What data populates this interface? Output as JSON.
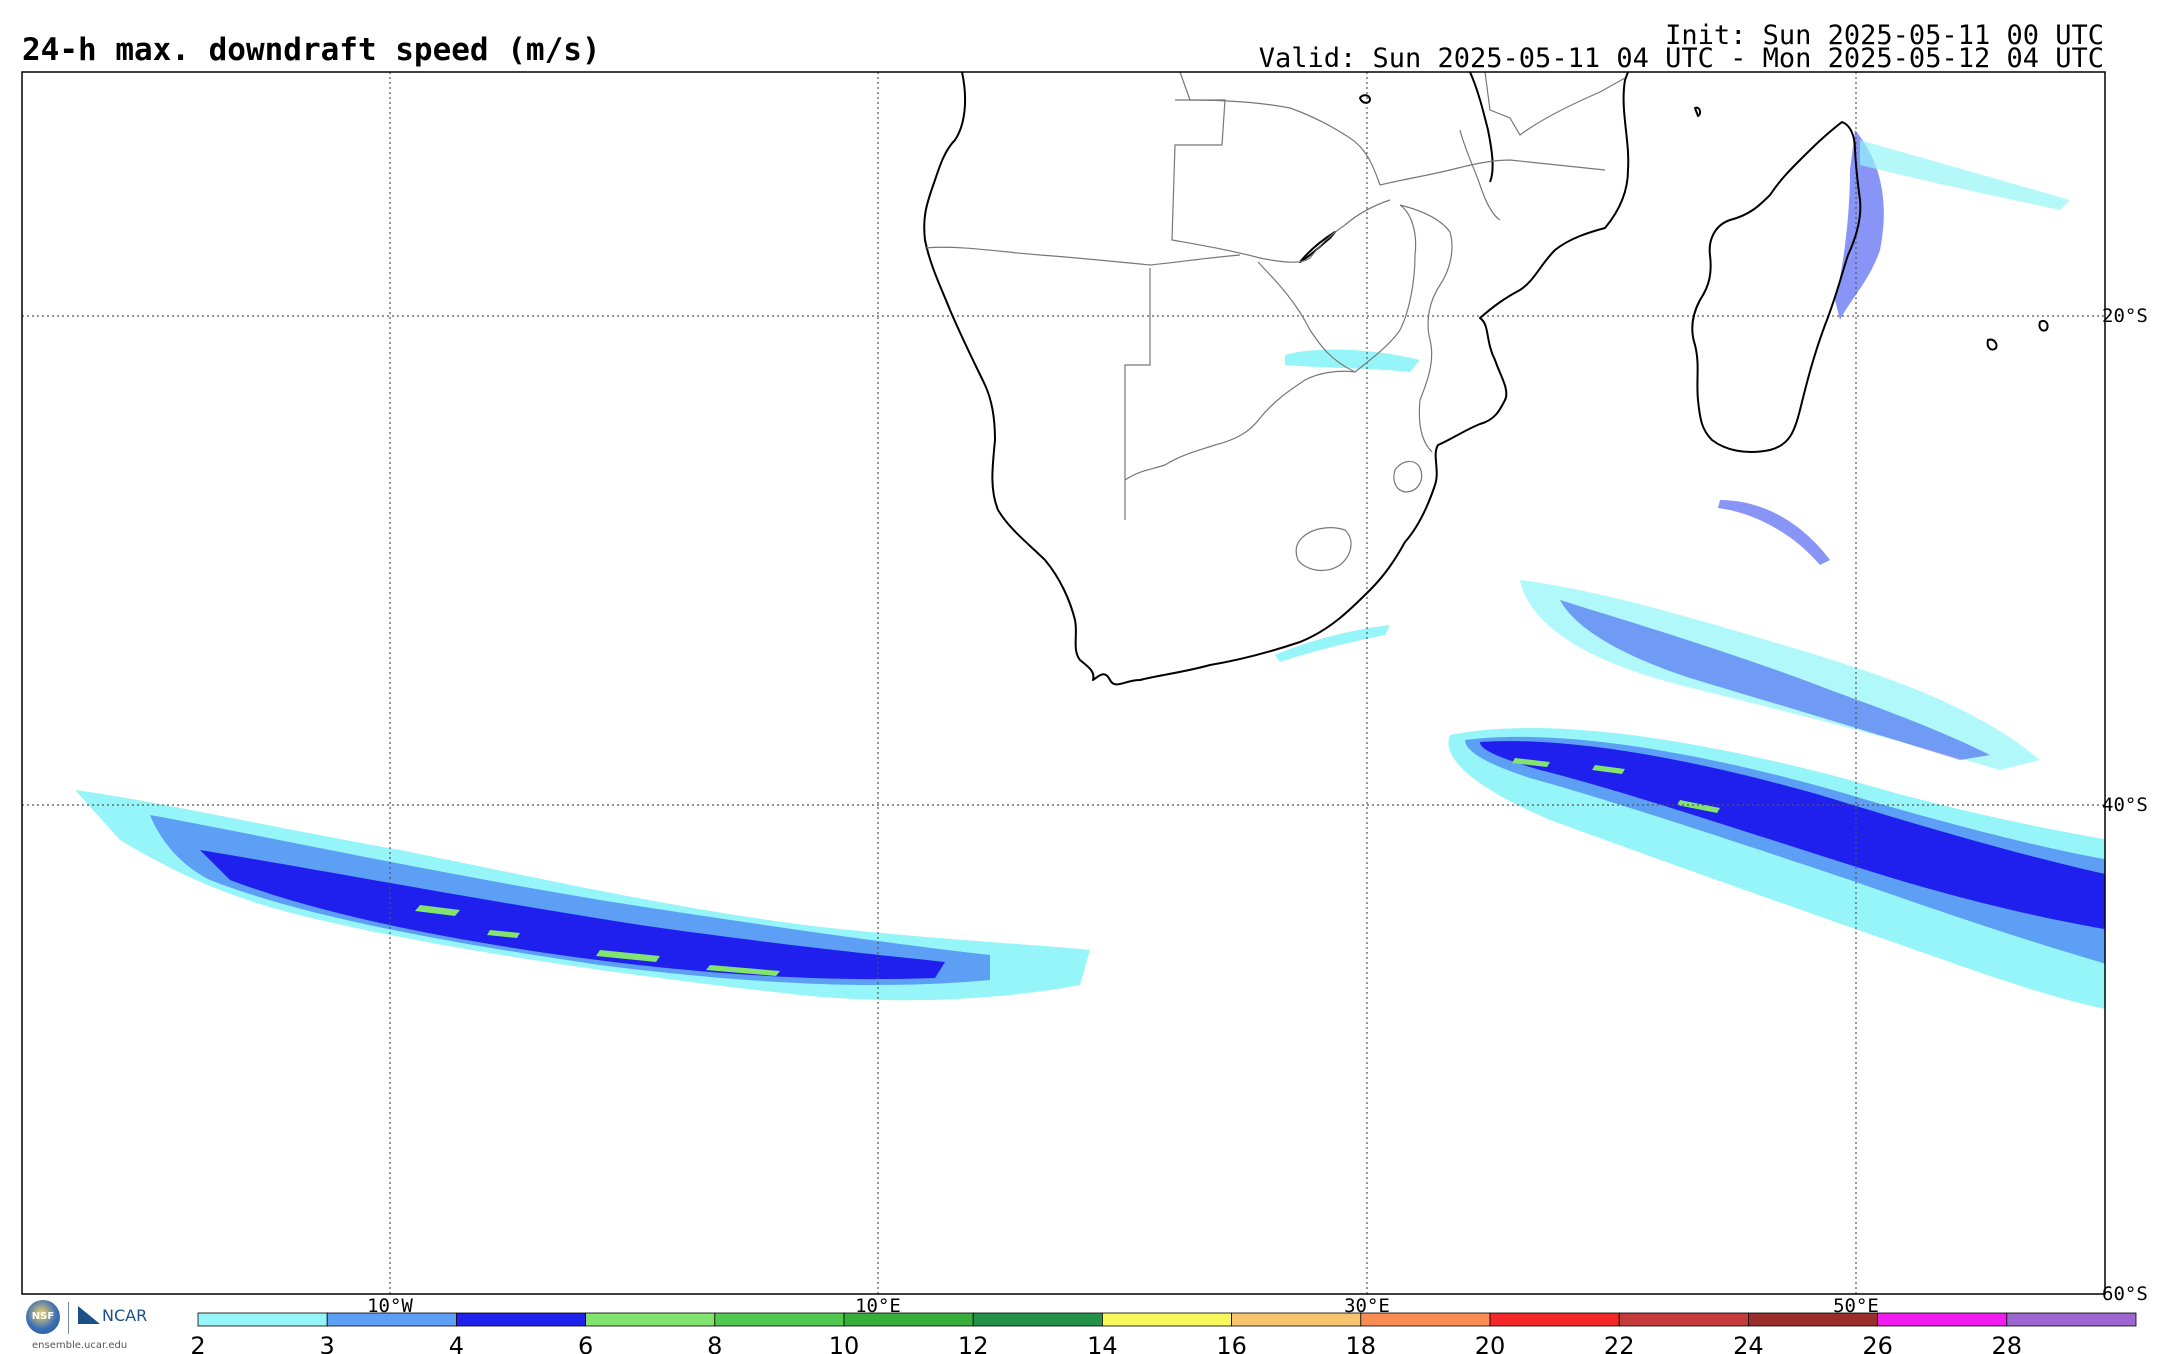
{
  "header": {
    "title": "24-h max. downdraft speed (m/s)",
    "init": "Init: Sun 2025-05-11 00 UTC",
    "valid": "Valid: Sun 2025-05-11 04 UTC - Mon 2025-05-12 04 UTC"
  },
  "map": {
    "lon_labels": [
      "10°W",
      "10°E",
      "30°E",
      "50°E"
    ],
    "lat_labels": [
      "20°S",
      "40°S",
      "60°S"
    ]
  },
  "colorbar": {
    "ticks": [
      "2",
      "3",
      "4",
      "6",
      "8",
      "10",
      "12",
      "14",
      "16",
      "18",
      "20",
      "22",
      "24",
      "26",
      "28"
    ],
    "colors": [
      "#96f5f8",
      "#5c9ff5",
      "#1f1fee",
      "#82e36f",
      "#4fca4f",
      "#36ae3c",
      "#24914b",
      "#f8f85c",
      "#f8c56e",
      "#f88c52",
      "#f42828",
      "#c53a3a",
      "#9b2c2c",
      "#ee1cee",
      "#9d66d0"
    ]
  },
  "logos": {
    "nsf_icon": "nsf-logo-icon",
    "ncar_icon": "ncar-logo-icon",
    "ncar_text": "NCAR",
    "site": "ensemble.ucar.edu"
  }
}
